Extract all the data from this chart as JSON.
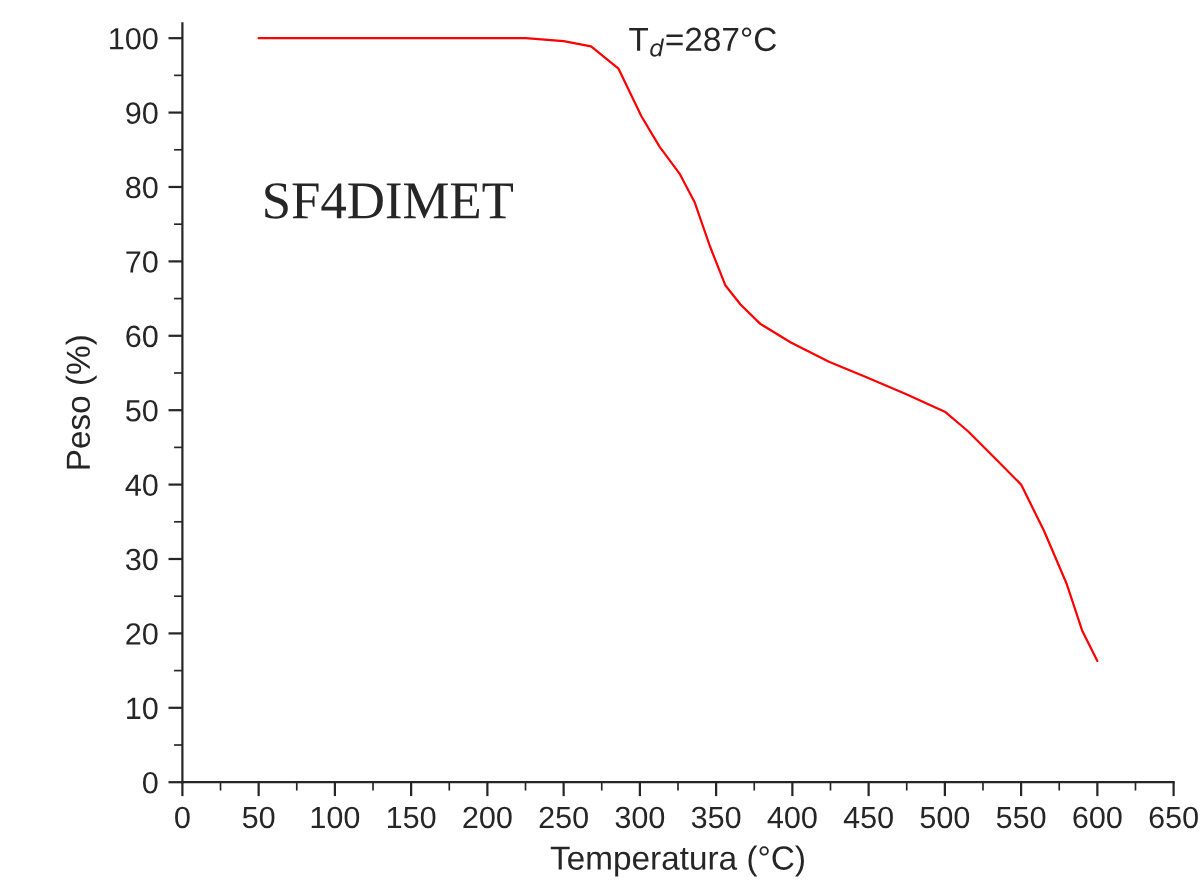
{
  "chart_data": {
    "type": "line",
    "xlabel": "Temperatura (°C)",
    "ylabel": "Peso (%)",
    "annotations": [
      "SF4DIMET",
      "T$_{d}$=287°C"
    ],
    "x": [
      50,
      225,
      250,
      268,
      286,
      301,
      313,
      326,
      336,
      346,
      356,
      366,
      379,
      399,
      424,
      449,
      474,
      500,
      515,
      535,
      550,
      565,
      580,
      590,
      600
    ],
    "series": [
      {
        "color": "#ff0000",
        "values": [
          100,
          100,
          99.6,
          98.9,
          95.9,
          89.5,
          85.4,
          81.8,
          77.9,
          72,
          66.8,
          64.2,
          61.6,
          59.1,
          56.5,
          54.4,
          52.2,
          49.8,
          47.2,
          43.1,
          40,
          33.8,
          26.6,
          20.4,
          16.3
        ]
      }
    ],
    "xlim": [
      0,
      650
    ],
    "ylim": [
      0,
      102
    ],
    "xticks": [
      0,
      50,
      100,
      150,
      200,
      250,
      300,
      350,
      400,
      450,
      500,
      550,
      600,
      650
    ],
    "yticks": [
      0,
      10,
      20,
      30,
      40,
      50,
      60,
      70,
      80,
      90,
      100
    ],
    "grid": false,
    "legend": false,
    "marker": "none",
    "line_style": "solid"
  }
}
